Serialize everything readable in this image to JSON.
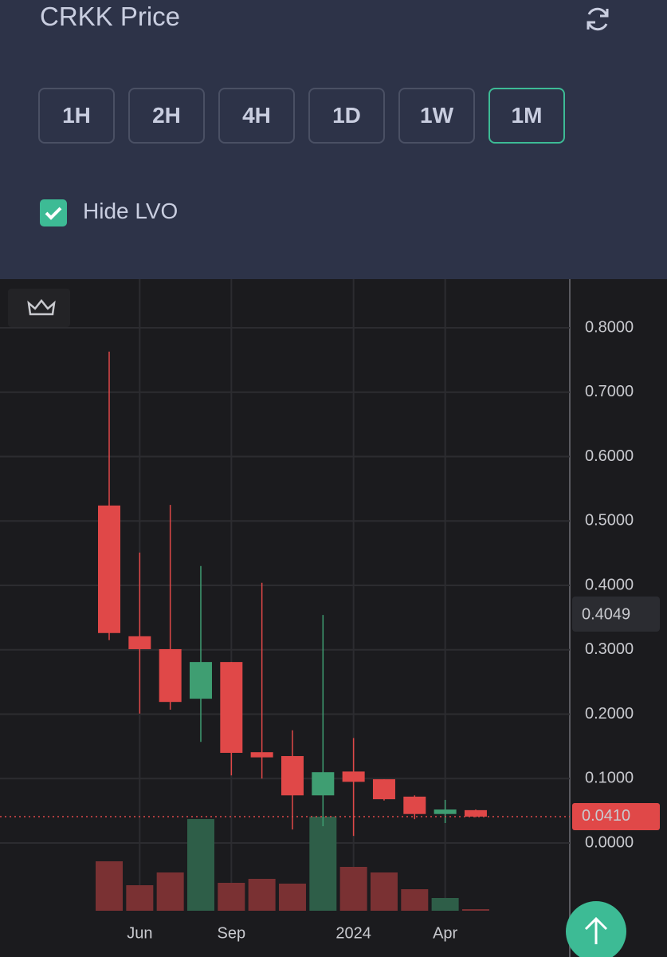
{
  "header": {
    "title": "CRKK Price"
  },
  "timeframes": {
    "options": [
      "1H",
      "2H",
      "4H",
      "1D",
      "1W",
      "1M"
    ],
    "active": 5
  },
  "hide_lvo": {
    "label": "Hide LVO",
    "checked": true
  },
  "chart_data": {
    "type": "candlestick",
    "categories": [
      null,
      "Jun",
      null,
      null,
      "Sep",
      null,
      null,
      null,
      "2024",
      null,
      null,
      "Apr",
      null
    ],
    "open": [
      0.524,
      0.321,
      0.301,
      0.224,
      0.281,
      0.141,
      0.135,
      0.074,
      0.111,
      0.099,
      0.072,
      0.045,
      0.051
    ],
    "high": [
      0.763,
      0.451,
      0.525,
      0.43,
      0.281,
      0.404,
      0.175,
      0.354,
      0.163,
      0.099,
      0.074,
      0.067,
      0.052
    ],
    "low": [
      0.315,
      0.201,
      0.207,
      0.157,
      0.105,
      0.1,
      0.021,
      0.026,
      0.011,
      0.066,
      0.037,
      0.031,
      0.04
    ],
    "close": [
      0.326,
      0.301,
      0.219,
      0.281,
      0.14,
      0.133,
      0.074,
      0.11,
      0.095,
      0.068,
      0.045,
      0.052,
      0.041
    ],
    "volume": [
      62,
      32,
      48,
      115,
      35,
      40,
      34,
      118,
      55,
      48,
      27,
      16,
      2
    ],
    "vlim": [
      0,
      120
    ],
    "up_color": "#3f9e72",
    "down_color": "#e04848",
    "volume_up_color": "#2e5e48",
    "volume_down_color": "#7a3133",
    "ylim": [
      -0.177,
      0.8755
    ],
    "yticks": [
      {
        "value": 0.8,
        "label": "0.8000"
      },
      {
        "value": 0.7,
        "label": "0.7000"
      },
      {
        "value": 0.6,
        "label": "0.6000"
      },
      {
        "value": 0.5,
        "label": "0.5000"
      },
      {
        "value": 0.4,
        "label": "0.4000"
      },
      {
        "value": 0.3,
        "label": "0.3000"
      },
      {
        "value": 0.2,
        "label": "0.2000"
      },
      {
        "value": 0.1,
        "label": "0.1000"
      },
      {
        "value": 0,
        "label": "0.0000"
      }
    ],
    "grid": true,
    "last_price": {
      "value": 0.041,
      "label": "0.0410"
    },
    "crosshair_label": "0.4049"
  }
}
